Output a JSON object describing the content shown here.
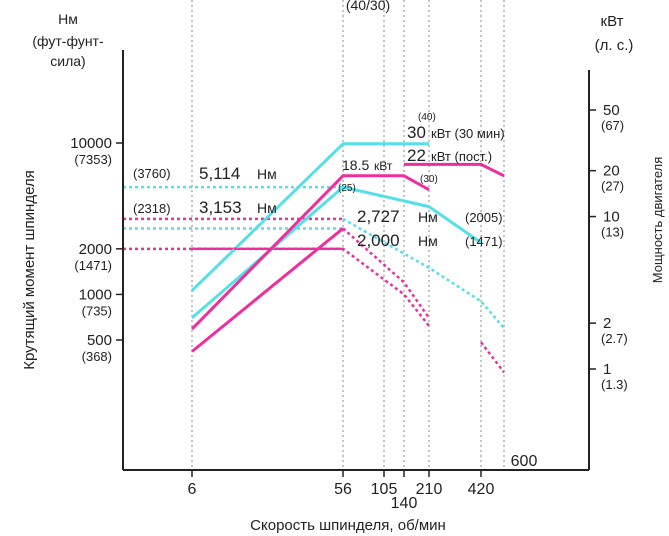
{
  "chart_data": {
    "type": "line",
    "title": "",
    "top_center_label": "(40/30)",
    "left_axis": {
      "unit_lines": [
        "Нм",
        "(фут-фунт-",
        "сила)"
      ],
      "label": "Крутящий момент шпинделя",
      "ticks": [
        {
          "value": 10000,
          "label": "10000",
          "sub": "(7353)"
        },
        {
          "value": 2000,
          "label": "2000",
          "sub": "(1471)"
        },
        {
          "value": 1000,
          "label": "1000",
          "sub": "(735)"
        },
        {
          "value": 500,
          "label": "500",
          "sub": "(368)"
        }
      ]
    },
    "right_axis": {
      "unit_lines": [
        "кВт",
        "(л. с.)"
      ],
      "label": "Мощность двигателя",
      "ticks": [
        {
          "value": 50,
          "label": "50",
          "sub": "(67)"
        },
        {
          "value": 20,
          "label": "20",
          "sub": "(27)"
        },
        {
          "value": 10,
          "label": "10",
          "sub": "(13)"
        },
        {
          "value": 2,
          "label": "2",
          "sub": "(2.7)"
        },
        {
          "value": 1,
          "label": "1",
          "sub": "(1.3)"
        }
      ]
    },
    "x_axis": {
      "label": "Скорость шпинделя, об/мин",
      "ticks": [
        {
          "value": 6,
          "label": "6"
        },
        {
          "value": 56,
          "label": "56"
        },
        {
          "value": 105,
          "label": "105"
        },
        {
          "value": 140,
          "label": "140"
        },
        {
          "value": 210,
          "label": "210"
        },
        {
          "value": 420,
          "label": "420"
        },
        {
          "value": 600,
          "label": "600"
        }
      ]
    },
    "series": [
      {
        "color": "#55e0e8",
        "style": "solid",
        "x": [
          6,
          56,
          105,
          210
        ],
        "y": [
          1060,
          30,
          30,
          30
        ]
      },
      {
        "color": "#55e0e8",
        "style": "solid",
        "x": [
          6,
          56,
          210,
          420
        ],
        "y": [
          700,
          5114,
          3800,
          2200
        ]
      },
      {
        "color": "#55e0e8",
        "style": "dotted",
        "x": [
          56,
          210,
          420,
          600
        ],
        "y": [
          3153,
          1500,
          900,
          600
        ]
      },
      {
        "color": "#ee2e9e",
        "style": "solid",
        "x": [
          6,
          56,
          105,
          140,
          210
        ],
        "y": [
          590,
          18.5,
          18.5,
          18.5,
          15
        ]
      },
      {
        "color": "#ee2e9e",
        "style": "solid",
        "x": [
          140,
          210,
          420,
          600
        ],
        "y": [
          22,
          22,
          22,
          18.5
        ]
      },
      {
        "color": "#ee2e9e",
        "style": "solid",
        "x": [
          6,
          56
        ],
        "y": [
          420,
          2727
        ]
      },
      {
        "color": "#ee2e9e",
        "style": "dotted",
        "x": [
          56,
          140,
          210
        ],
        "y": [
          2727,
          1200,
          700
        ]
      },
      {
        "color": "#ee2e9e",
        "style": "dotted",
        "x": [
          6,
          56,
          140,
          210
        ],
        "y": [
          2000,
          2000,
          1000,
          620
        ]
      },
      {
        "color": "#ee2e9e",
        "style": "dotted",
        "x": [
          420,
          600
        ],
        "y": [
          1.5,
          0.95
        ]
      }
    ],
    "reference_lines": [
      {
        "color": "#55e0e8",
        "style": "dotted",
        "y": 5114
      },
      {
        "color": "#55e0e8",
        "style": "dotted",
        "y": 2727
      },
      {
        "color": "#ee2e9e",
        "style": "dotted",
        "y": 3153
      },
      {
        "color": "#ee2e9e",
        "style": "dotted",
        "y": 2000
      }
    ],
    "annotations": {
      "t1": {
        "sub": "(3760)",
        "value": "5,114",
        "unit": "Нм"
      },
      "t2": {
        "sub": "(2318)",
        "value": "3,153",
        "unit": "Нм"
      },
      "t3": {
        "value": "2,727",
        "unit": "Нм",
        "sub": "(2005)"
      },
      "t4": {
        "value": "2,000",
        "unit": "Нм",
        "sub": "(1471)"
      },
      "p30": {
        "value": "30",
        "unit": "кВт (30 мин)",
        "sub": "(40)"
      },
      "p22": {
        "value": "22",
        "unit": "кВт (пост.)",
        "sub": "(30)"
      },
      "p185": {
        "value": "18.5",
        "unit": "кВт",
        "sub": "(25)"
      }
    },
    "grid": "vertical-dotted-at-x-ticks",
    "legend": "none"
  }
}
